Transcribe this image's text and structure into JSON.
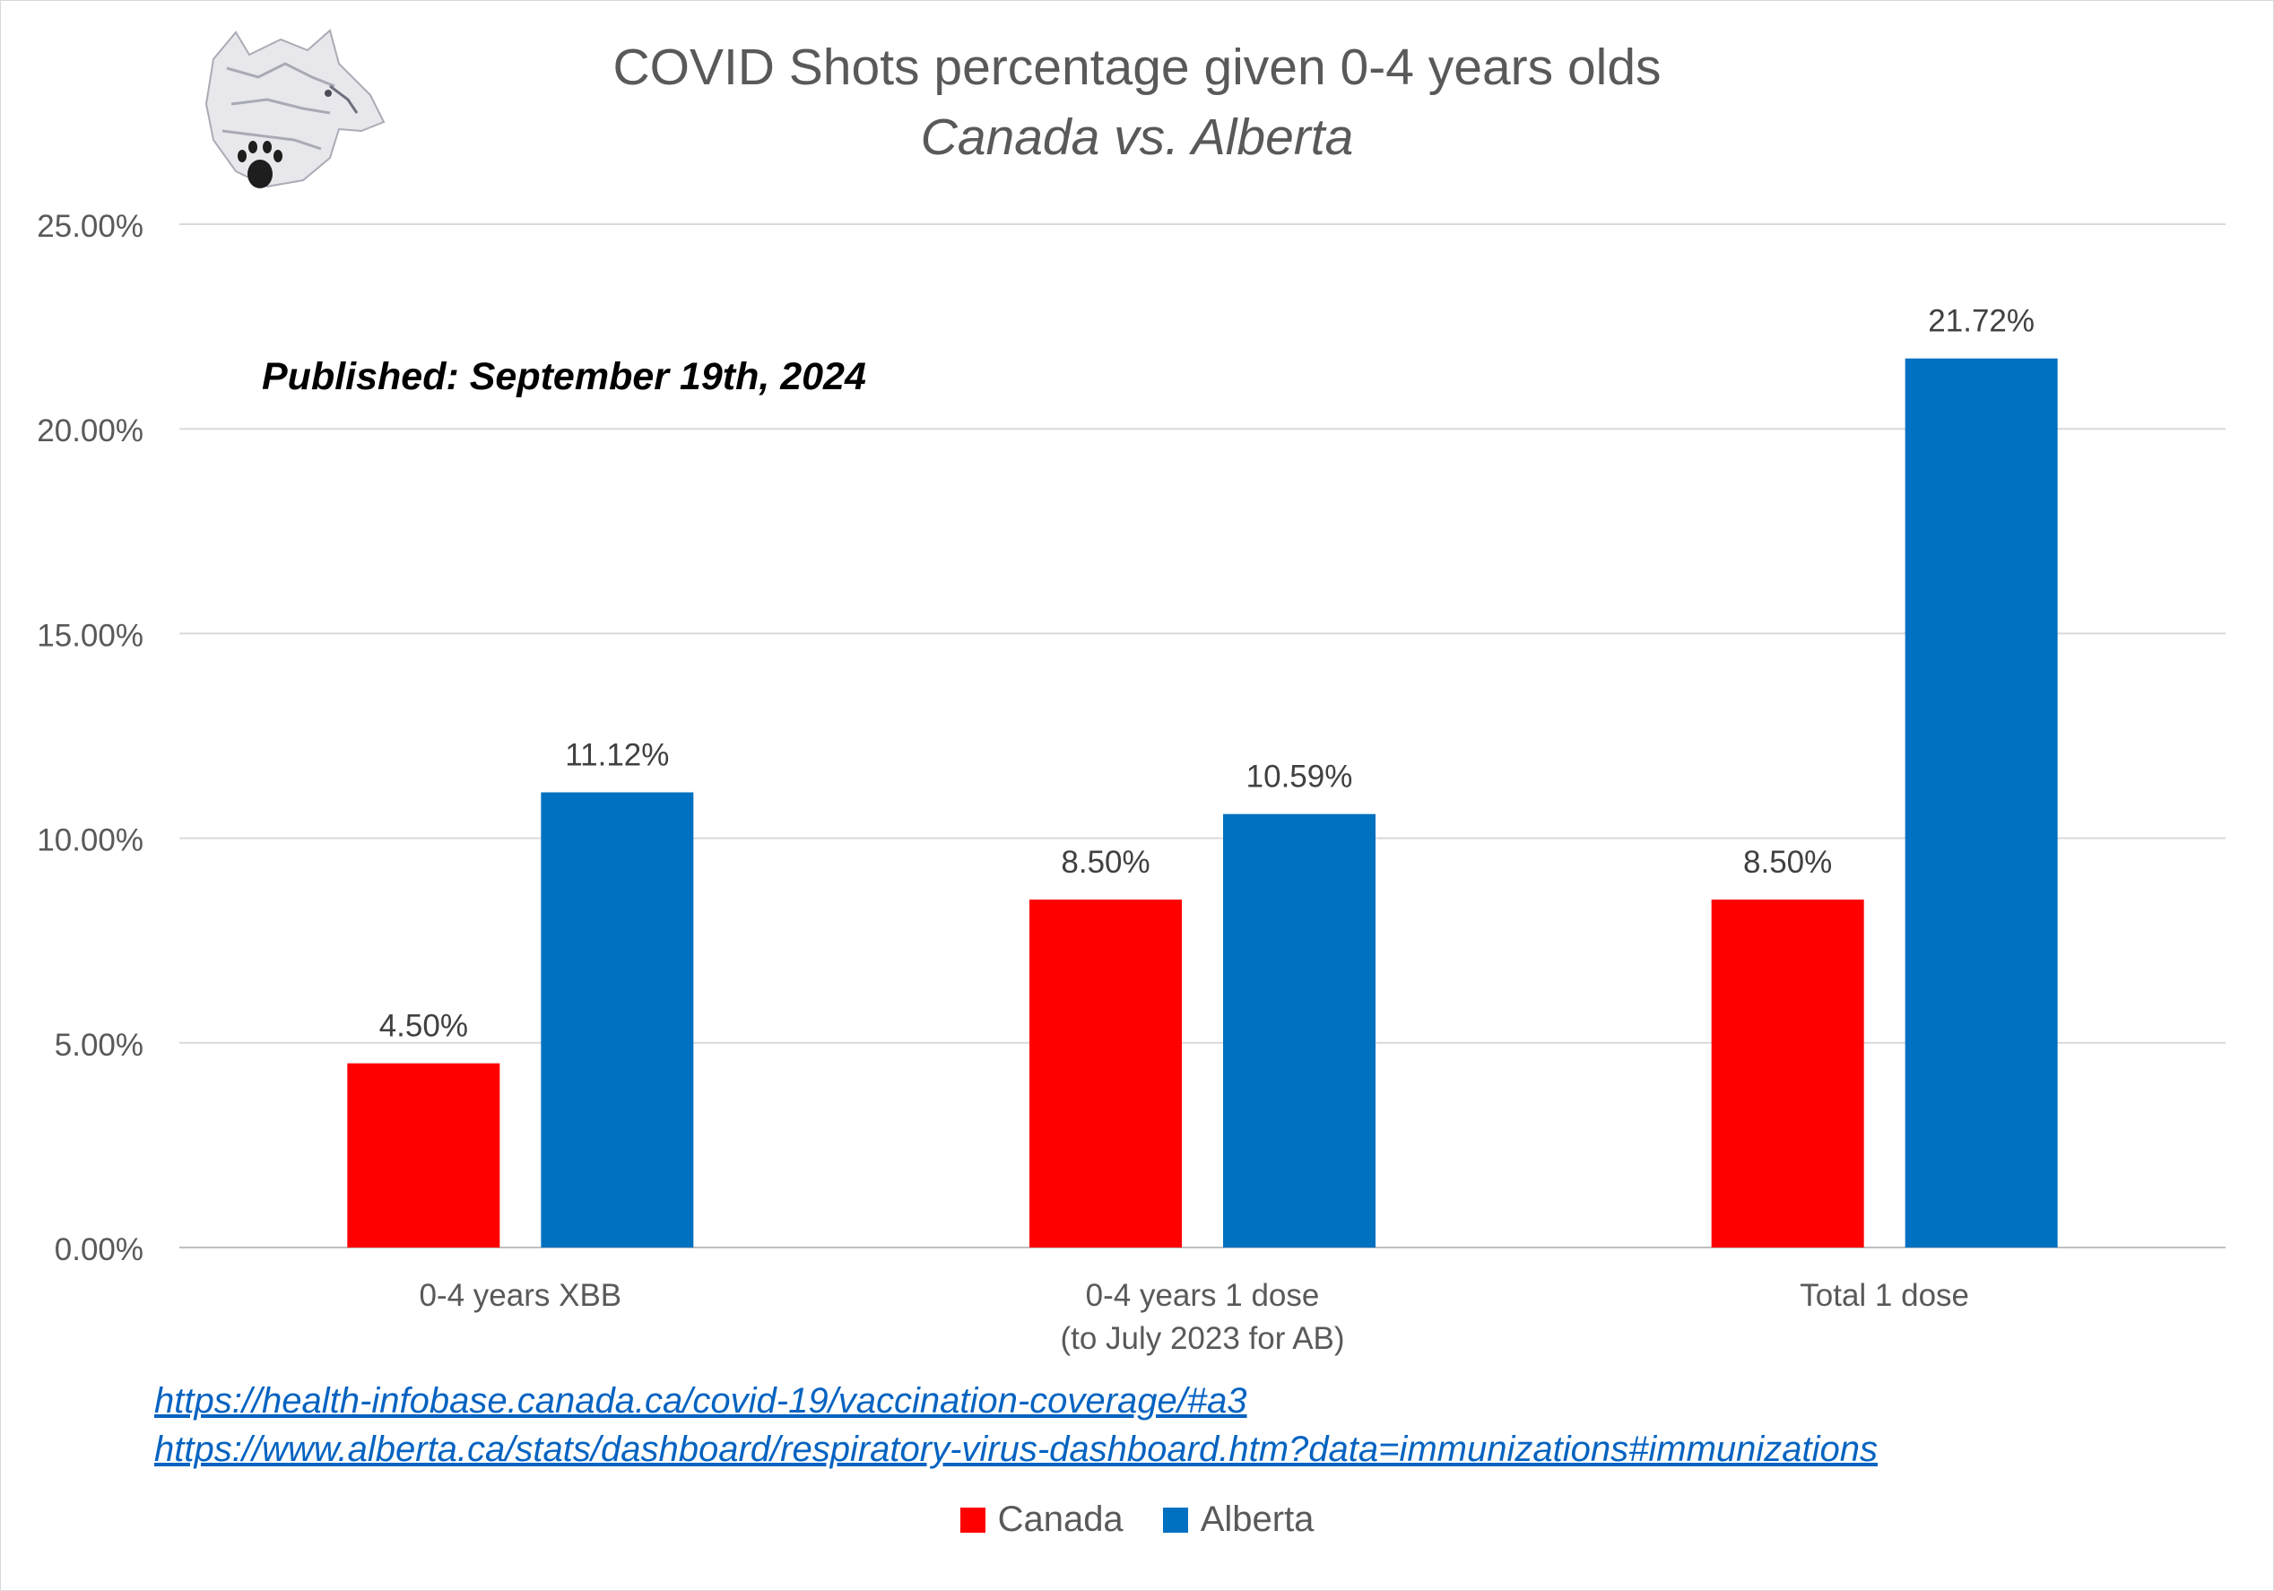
{
  "chart_data": {
    "type": "bar",
    "title": "COVID Shots percentage given 0-4 years olds",
    "subtitle": "Canada vs. Alberta",
    "annotation": "Published: September 19th, 2024",
    "categories": [
      [
        "0-4 years XBB"
      ],
      [
        "0-4 years 1 dose",
        "(to July 2023 for AB)"
      ],
      [
        "Total 1 dose"
      ]
    ],
    "series": [
      {
        "name": "Canada",
        "color": "#ff0000",
        "values": [
          4.5,
          8.5,
          8.5
        ],
        "labels": [
          "4.50%",
          "8.50%",
          "8.50%"
        ]
      },
      {
        "name": "Alberta",
        "color": "#0070c0",
        "values": [
          11.12,
          10.59,
          21.72
        ],
        "labels": [
          "11.12%",
          "10.59%",
          "21.72%"
        ]
      }
    ],
    "ylim": [
      0,
      25
    ],
    "yticks": [
      0,
      5,
      10,
      15,
      20,
      25
    ],
    "ytick_labels": [
      "0.00%",
      "5.00%",
      "10.00%",
      "15.00%",
      "20.00%",
      "25.00%"
    ],
    "xlabel": "",
    "ylabel": "",
    "grid": true,
    "legend_position": "bottom"
  },
  "sources": [
    "https://health-infobase.canada.ca/covid-19/vaccination-coverage/#a3",
    "https://www.alberta.ca/stats/dashboard/respiratory-virus-dashboard.htm?data=immunizations#immunizations"
  ],
  "logo": {
    "icon": "wolf-paw-logo-icon"
  }
}
